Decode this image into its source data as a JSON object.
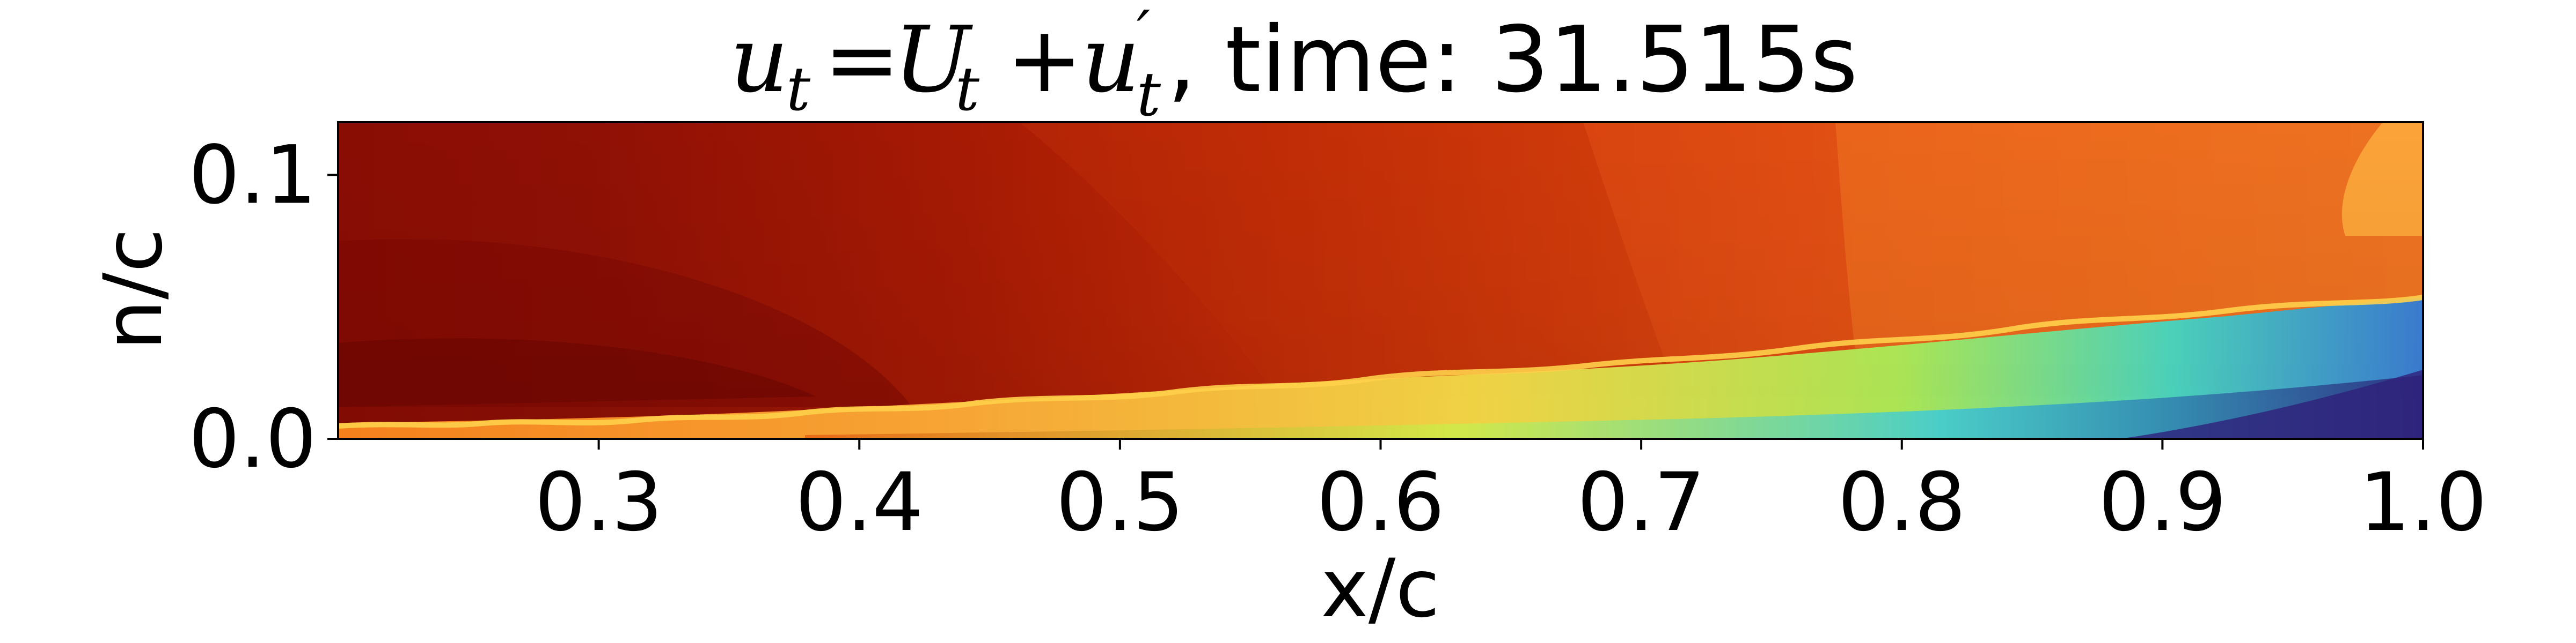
{
  "chart_data": {
    "type": "heatmap",
    "title": {
      "math_u": "u",
      "math_t": "t",
      "equals": "=",
      "math_U": "U",
      "plus": "+",
      "math_uprime": "u",
      "prime": "′",
      "suffix": ", time: 31.515s"
    },
    "xlabel": "x/c",
    "ylabel": "n/c",
    "xlim": [
      0.2,
      1.0
    ],
    "ylim": [
      0.0,
      0.12
    ],
    "x_ticks": [
      {
        "value": 0.3,
        "label": "0.3"
      },
      {
        "value": 0.4,
        "label": "0.4"
      },
      {
        "value": 0.5,
        "label": "0.5"
      },
      {
        "value": 0.6,
        "label": "0.6"
      },
      {
        "value": 0.7,
        "label": "0.7"
      },
      {
        "value": 0.8,
        "label": "0.8"
      },
      {
        "value": 0.9,
        "label": "0.9"
      },
      {
        "value": 1.0,
        "label": "1.0"
      }
    ],
    "y_ticks": [
      {
        "value": 0.0,
        "label": "0.0"
      },
      {
        "value": 0.1,
        "label": "0.1"
      }
    ],
    "colormap": "turbo",
    "colorbar": false,
    "grid": false,
    "field_regions": [
      {
        "name": "boundary-layer",
        "description_free": true,
        "thickness_profile": [
          [
            0.2,
            0.006
          ],
          [
            0.3,
            0.008
          ],
          [
            0.4,
            0.012
          ],
          [
            0.5,
            0.016
          ],
          [
            0.6,
            0.021
          ],
          [
            0.7,
            0.026
          ],
          [
            0.8,
            0.034
          ],
          [
            0.9,
            0.044
          ],
          [
            1.0,
            0.052
          ]
        ]
      }
    ]
  }
}
